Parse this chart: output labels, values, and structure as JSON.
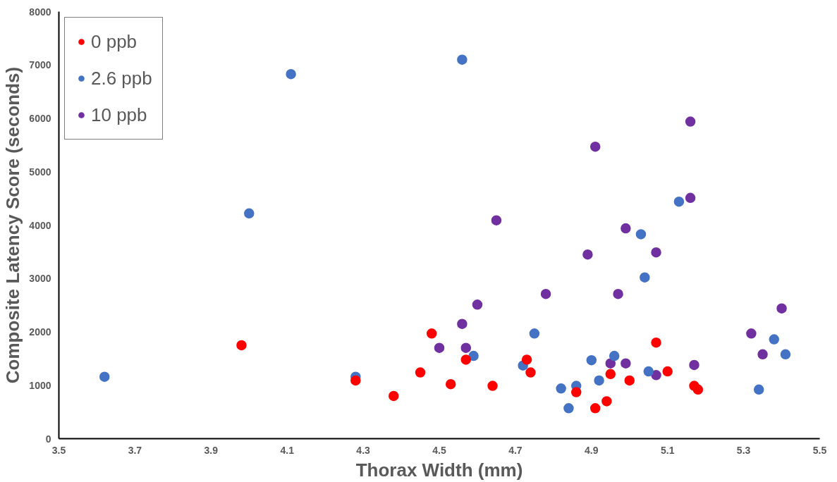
{
  "chart_data": {
    "type": "scatter",
    "xlabel": "Thorax Width (mm)",
    "ylabel": "Composite Latency Score (seconds)",
    "xlim": [
      3.5,
      5.5
    ],
    "ylim": [
      0,
      8000
    ],
    "xticks": [
      3.5,
      3.7,
      3.9,
      4.1,
      4.3,
      4.5,
      4.7,
      4.9,
      5.1,
      5.3,
      5.5
    ],
    "yticks": [
      0,
      1000,
      2000,
      3000,
      4000,
      5000,
      6000,
      7000,
      8000
    ],
    "grid": false,
    "legend": "top left",
    "marker": "circle",
    "series": [
      {
        "name": "0 ppb",
        "color": "#ff0000",
        "x": [
          3.98,
          4.28,
          4.38,
          4.45,
          4.48,
          4.53,
          4.57,
          4.64,
          4.73,
          4.74,
          4.86,
          4.91,
          4.94,
          4.95,
          5.0,
          5.07,
          5.1,
          5.17,
          5.18
        ],
        "values": [
          1750,
          1090,
          800,
          1240,
          1970,
          1020,
          1480,
          990,
          1480,
          1240,
          870,
          570,
          700,
          1210,
          1090,
          1800,
          1260,
          990,
          920
        ]
      },
      {
        "name": "2.6 ppb",
        "color": "#4472c4",
        "x": [
          3.62,
          4.0,
          4.11,
          4.28,
          4.56,
          4.59,
          4.72,
          4.75,
          4.82,
          4.84,
          4.86,
          4.9,
          4.92,
          4.96,
          5.03,
          5.04,
          5.05,
          5.13,
          5.34,
          5.38,
          5.41
        ],
        "values": [
          1160,
          4220,
          6830,
          1160,
          7100,
          1550,
          1370,
          1970,
          940,
          570,
          990,
          1470,
          1090,
          1550,
          3830,
          3020,
          1260,
          4440,
          920,
          1860,
          1580
        ]
      },
      {
        "name": "10 ppb",
        "color": "#7030a0",
        "x": [
          4.5,
          4.56,
          4.57,
          4.6,
          4.65,
          4.78,
          4.89,
          4.91,
          4.95,
          4.97,
          4.99,
          4.99,
          5.07,
          5.07,
          5.16,
          5.16,
          5.17,
          5.32,
          5.35,
          5.4
        ],
        "values": [
          1700,
          2150,
          1700,
          2510,
          4090,
          2710,
          3450,
          5470,
          1410,
          2710,
          1410,
          3940,
          3490,
          1190,
          5940,
          4510,
          1380,
          1970,
          1580,
          2440
        ]
      }
    ]
  }
}
